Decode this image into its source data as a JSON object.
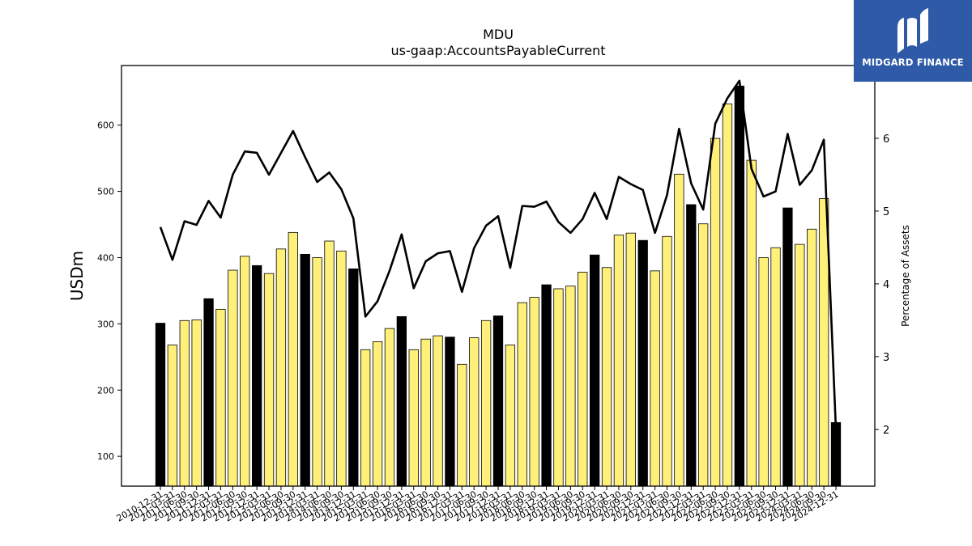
{
  "logo": {
    "text": "MIDGARD FINANCE",
    "color": "#2f5aa8"
  },
  "chart_data": {
    "type": "bar",
    "title": "MDU",
    "subtitle": "us-gaap:AccountsPayableCurrent",
    "ylabel": "USDm",
    "y2label": "Percentage of Assets",
    "ylim": [
      55,
      690
    ],
    "y2lim": [
      1.22,
      7.0
    ],
    "yticks": [
      100,
      200,
      300,
      400,
      500,
      600
    ],
    "y2ticks": [
      2,
      3,
      4,
      5,
      6
    ],
    "bar_colors": {
      "annual": "#000000",
      "quarterly": "#fff07a"
    },
    "line_color": "#000000",
    "categories": [
      "2010-12-31",
      "2011-03-31",
      "2011-06-30",
      "2011-09-30",
      "2011-12-31",
      "2012-03-31",
      "2012-06-30",
      "2012-09-30",
      "2012-12-31",
      "2013-03-31",
      "2013-06-30",
      "2013-09-30",
      "2013-12-31",
      "2014-03-31",
      "2014-06-30",
      "2014-09-30",
      "2014-12-31",
      "2015-03-31",
      "2015-06-30",
      "2015-09-30",
      "2015-12-31",
      "2016-03-31",
      "2016-06-30",
      "2016-09-30",
      "2016-12-31",
      "2017-03-31",
      "2017-06-30",
      "2017-09-30",
      "2017-12-31",
      "2018-03-31",
      "2018-06-30",
      "2018-09-30",
      "2018-12-31",
      "2019-03-31",
      "2019-06-30",
      "2019-09-30",
      "2019-12-31",
      "2020-03-31",
      "2020-06-30",
      "2020-09-30",
      "2020-12-31",
      "2021-03-31",
      "2021-06-30",
      "2021-09-30",
      "2021-12-31",
      "2022-03-31",
      "2022-06-30",
      "2022-09-30",
      "2022-12-31",
      "2023-03-31",
      "2023-06-30",
      "2023-09-30",
      "2023-12-31",
      "2024-03-31",
      "2024-06-30",
      "2024-09-30",
      "2024-12-31"
    ],
    "annual": [
      true,
      false,
      false,
      false,
      true,
      false,
      false,
      false,
      true,
      false,
      false,
      false,
      true,
      false,
      false,
      false,
      true,
      false,
      false,
      false,
      true,
      false,
      false,
      false,
      true,
      false,
      false,
      false,
      true,
      false,
      false,
      false,
      true,
      false,
      false,
      false,
      true,
      false,
      false,
      false,
      true,
      false,
      false,
      false,
      true,
      false,
      false,
      false,
      true,
      false,
      false,
      false,
      true,
      false,
      false,
      false,
      true
    ],
    "series": [
      {
        "name": "",
        "kind": "bar",
        "axis": "left",
        "values": [
          301,
          268,
          305,
          306,
          338,
          322,
          381,
          402,
          388,
          376,
          413,
          438,
          405,
          400,
          425,
          410,
          383,
          261,
          273,
          293,
          311,
          261,
          277,
          282,
          280,
          239,
          279,
          305,
          312,
          268,
          332,
          340,
          359,
          353,
          357,
          378,
          404,
          385,
          434,
          437,
          426,
          380,
          432,
          526,
          480,
          451,
          580,
          632,
          659,
          547,
          400,
          415,
          475,
          420,
          443,
          489,
          151
        ]
      },
      {
        "name": "",
        "kind": "line",
        "axis": "right",
        "values": [
          4.78,
          4.33,
          4.86,
          4.81,
          5.14,
          4.91,
          5.5,
          5.82,
          5.8,
          5.5,
          5.8,
          6.1,
          5.74,
          5.4,
          5.53,
          5.3,
          4.9,
          3.55,
          3.76,
          4.18,
          4.68,
          3.94,
          4.31,
          4.42,
          4.45,
          3.89,
          4.49,
          4.8,
          4.93,
          4.22,
          5.07,
          5.06,
          5.13,
          4.85,
          4.7,
          4.89,
          5.25,
          4.89,
          5.47,
          5.37,
          5.29,
          4.7,
          5.22,
          6.13,
          5.38,
          5.02,
          6.2,
          6.55,
          6.79,
          5.58,
          5.2,
          5.27,
          6.06,
          5.36,
          5.56,
          5.98,
          2.0
        ]
      }
    ],
    "xlabel": ""
  }
}
